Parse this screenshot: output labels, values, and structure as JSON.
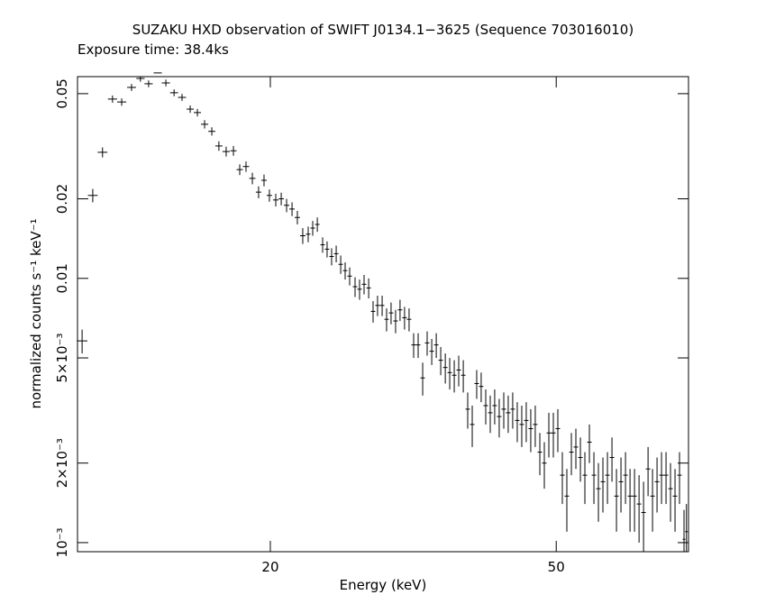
{
  "chart_data": {
    "type": "scatter",
    "title": "SUZAKU HXD observation of SWIFT J0134.1−3625 (Sequence 703016010)",
    "subtitle": "Exposure time: 38.4ks",
    "x_label": "Energy (keV)",
    "y_label": "normalized counts s⁻¹ keV⁻¹",
    "log_x": true,
    "log_y": true,
    "color": "#000000",
    "xlim": [
      10.78,
      76.4
    ],
    "ylim": [
      0.000924,
      0.058
    ],
    "xticks": [
      20,
      50
    ],
    "yticks": [
      {
        "value": 0.001,
        "label": "10⁻³"
      },
      {
        "value": 0.002,
        "label": "2×10⁻³"
      },
      {
        "value": 0.005,
        "label": "5×10⁻³"
      },
      0.01,
      0.02,
      0.05
    ],
    "x": [
      10.94,
      11.32,
      11.68,
      12.06,
      12.42,
      12.82,
      13.19,
      13.54,
      13.94,
      14.31,
      14.69,
      15.07,
      15.47,
      15.83,
      16.2,
      16.58,
      16.96,
      17.36,
      17.77,
      18.13,
      18.5,
      18.88,
      19.26,
      19.6,
      19.94,
      20.35,
      20.71,
      21.07,
      21.44,
      21.81,
      22.19,
      22.58,
      22.91,
      23.25,
      23.65,
      23.99,
      24.34,
      24.7,
      25.06,
      25.42,
      25.79,
      26.24,
      26.62,
      27.01,
      27.41,
      27.8,
      28.2,
      28.62,
      29.03,
      29.45,
      29.88,
      30.31,
      30.75,
      31.2,
      31.66,
      32.12,
      32.59,
      33.06,
      33.55,
      34.04,
      34.53,
      35.04,
      35.54,
      36.06,
      36.58,
      37.12,
      37.65,
      38.2,
      38.75,
      39.31,
      39.89,
      40.47,
      41.05,
      41.65,
      42.26,
      42.87,
      43.49,
      44.13,
      44.77,
      45.42,
      46.08,
      46.75,
      47.44,
      48.13,
      48.83,
      49.54,
      50.26,
      50.99,
      51.73,
      52.49,
      53.25,
      54.03,
      54.81,
      55.61,
      56.42,
      57.24,
      58.07,
      58.92,
      59.78,
      60.65,
      61.53,
      62.43,
      63.34,
      64.26,
      65.2,
      66.15,
      67.11,
      68.08,
      69.07,
      70.07,
      71.09,
      72.12,
      73.17,
      74.23,
      75.31,
      75.9
    ],
    "values": [
      0.0058,
      0.0206,
      0.03,
      0.0477,
      0.0465,
      0.0528,
      0.0571,
      0.0545,
      0.0599,
      0.0549,
      0.0504,
      0.0484,
      0.0437,
      0.0424,
      0.0383,
      0.036,
      0.0317,
      0.0302,
      0.0304,
      0.0258,
      0.0265,
      0.0239,
      0.0212,
      0.0235,
      0.0206,
      0.0198,
      0.02,
      0.0189,
      0.0183,
      0.017,
      0.0145,
      0.0147,
      0.0155,
      0.016,
      0.0134,
      0.0129,
      0.0121,
      0.0124,
      0.0113,
      0.0107,
      0.0102,
      0.0093,
      0.0091,
      0.0095,
      0.0092,
      0.0075,
      0.0079,
      0.0079,
      0.007,
      0.0074,
      0.0069,
      0.0076,
      0.0071,
      0.007,
      0.0056,
      0.0056,
      0.0042,
      0.0057,
      0.0053,
      0.0056,
      0.0049,
      0.0046,
      0.0044,
      0.0043,
      0.0045,
      0.0043,
      0.0032,
      0.0028,
      0.004,
      0.0039,
      0.0033,
      0.0031,
      0.0033,
      0.003,
      0.0032,
      0.0031,
      0.0032,
      0.0029,
      0.0028,
      0.0029,
      0.0027,
      0.0028,
      0.0022,
      0.002,
      0.0026,
      0.0026,
      0.0027,
      0.0018,
      0.0015,
      0.0022,
      0.0023,
      0.0021,
      0.0018,
      0.0024,
      0.0018,
      0.0016,
      0.0017,
      0.0018,
      0.0021,
      0.0015,
      0.0017,
      0.0018,
      0.0015,
      0.0015,
      0.0014,
      0.0013,
      0.0019,
      0.0015,
      0.0017,
      0.0018,
      0.0018,
      0.0016,
      0.0015,
      0.0018,
      0.00103,
      0.0011
    ],
    "yerr": [
      0.0006,
      0.0012,
      0.0013,
      0.0015,
      0.0015,
      0.0016,
      0.0016,
      0.0016,
      0.0017,
      0.0016,
      0.0015,
      0.0015,
      0.0014,
      0.0014,
      0.0014,
      0.0013,
      0.0013,
      0.0013,
      0.0013,
      0.0012,
      0.0012,
      0.0012,
      0.0011,
      0.0012,
      0.0011,
      0.0011,
      0.0011,
      0.0011,
      0.0011,
      0.001,
      0.001,
      0.001,
      0.001,
      0.001,
      0.0009,
      0.0009,
      0.0009,
      0.0009,
      0.0009,
      0.0008,
      0.0008,
      0.0008,
      0.0008,
      0.0008,
      0.0008,
      0.0007,
      0.0007,
      0.0007,
      0.0007,
      0.0007,
      0.0007,
      0.0007,
      0.0007,
      0.0007,
      0.0006,
      0.0006,
      0.0006,
      0.0006,
      0.0006,
      0.0006,
      0.0006,
      0.0006,
      0.0006,
      0.0006,
      0.0006,
      0.0006,
      0.0005,
      0.0005,
      0.0005,
      0.0005,
      0.0005,
      0.0005,
      0.0005,
      0.0005,
      0.0005,
      0.0005,
      0.0005,
      0.0005,
      0.0005,
      0.0005,
      0.0005,
      0.0005,
      0.0004,
      0.0004,
      0.0005,
      0.0005,
      0.0005,
      0.0004,
      0.0004,
      0.0004,
      0.0004,
      0.0004,
      0.0004,
      0.0004,
      0.0004,
      0.0004,
      0.0004,
      0.0004,
      0.0004,
      0.0004,
      0.0004,
      0.0004,
      0.0004,
      0.0004,
      0.0004,
      0.0004,
      0.0004,
      0.0004,
      0.0004,
      0.0004,
      0.0004,
      0.0004,
      0.0004,
      0.0004,
      0.0003,
      0.0003
    ]
  }
}
